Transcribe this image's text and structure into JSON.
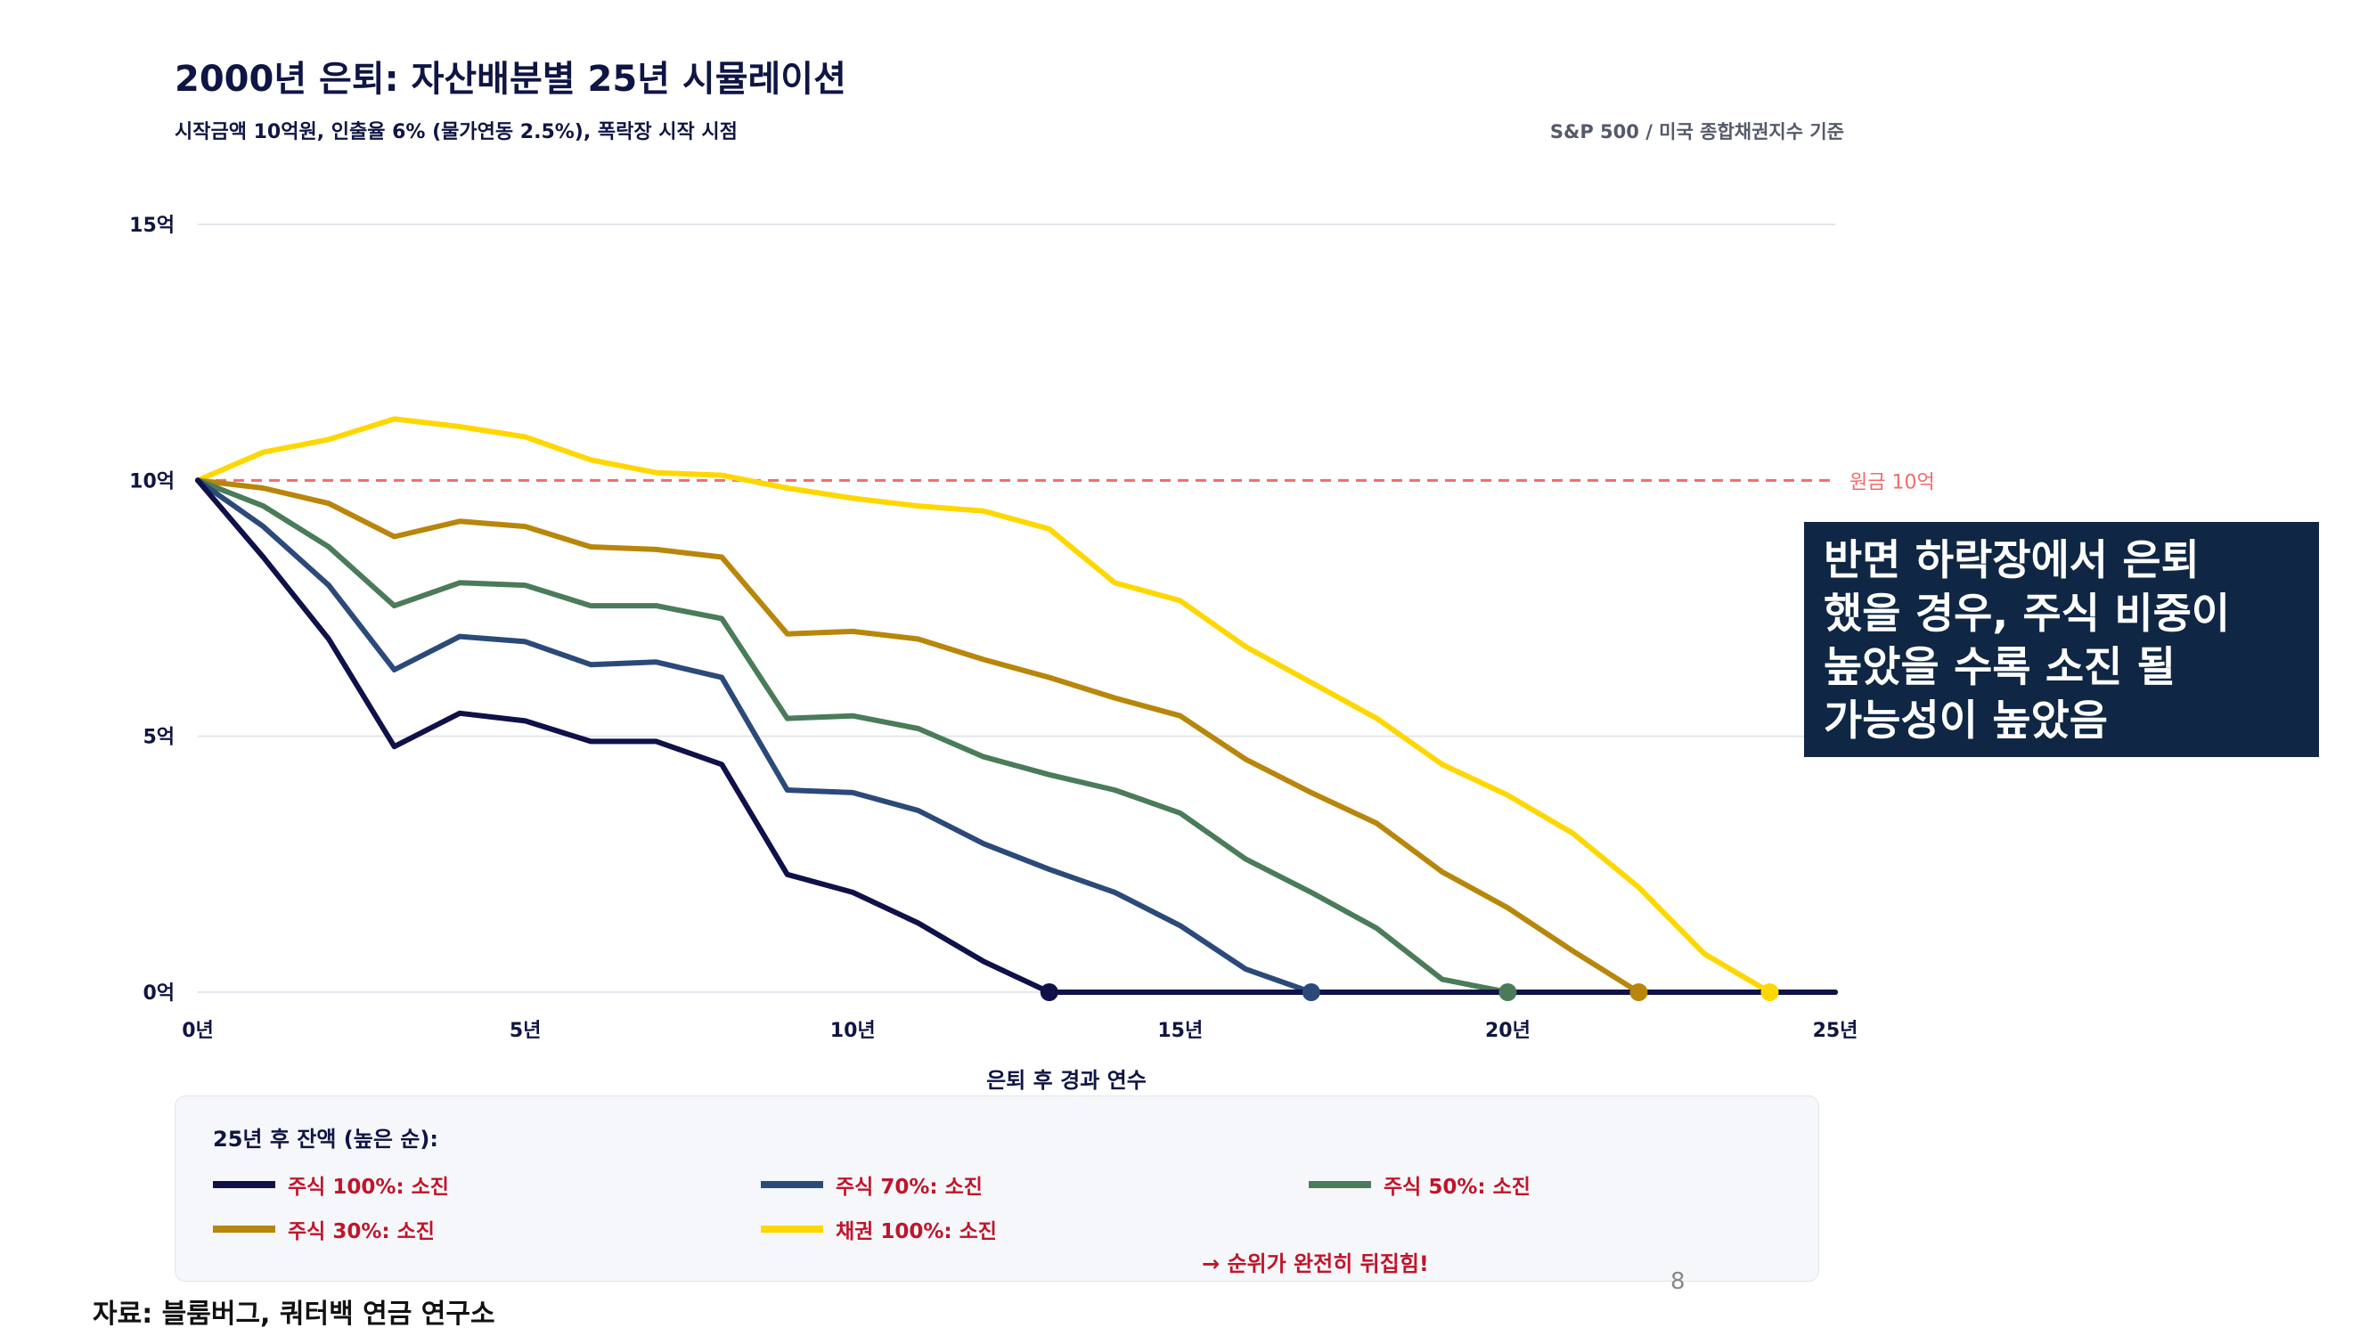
{
  "title": "2000년 은퇴: 자산배분별 25년 시뮬레이션",
  "subtitle": "시작금액 10억원, 인출율 6% (물가연동 2.5%), 폭락장 시작 시점",
  "source_note": "S&P 500 / 미국 종합채권지수 기준",
  "callout": {
    "lines": [
      "반면 하락장에서 은퇴",
      "했을 경우, 주식 비중이",
      "높았을 수록 소진 될",
      "가능성이 높았음"
    ]
  },
  "legend_box": {
    "heading": "25년 후 잔액 (높은 순):",
    "items": [
      {
        "label": "주식 100%: 소진",
        "color": "#0f1148"
      },
      {
        "label": "주식 70%: 소진",
        "color": "#2b4a7a"
      },
      {
        "label": "주식 50%: 소진",
        "color": "#4a7c59"
      },
      {
        "label": "주식 30%: 소진",
        "color": "#b8860b"
      },
      {
        "label": "채권 100%: 소진",
        "color": "#ffd700"
      }
    ],
    "note": "→ 순위가 완전히 뒤집힘!"
  },
  "page_number": "8",
  "footer_source": "자료: 블룸버그, 쿼터백 연금 연구소",
  "chart_data": {
    "type": "line",
    "xlabel": "은퇴 후 경과 연수",
    "ylabel": "",
    "xlim": [
      0,
      25
    ],
    "ylim": [
      0,
      15
    ],
    "x_ticks": [
      0,
      5,
      10,
      15,
      20,
      25
    ],
    "x_tick_labels": [
      "0년",
      "5년",
      "10년",
      "15년",
      "20년",
      "25년"
    ],
    "y_ticks": [
      0,
      5,
      10,
      15
    ],
    "y_tick_labels": [
      "0억",
      "5억",
      "10억",
      "15억"
    ],
    "grid": true,
    "reference_line": {
      "y": 10,
      "label": "원금 10억",
      "color": "#f26b6b"
    },
    "x": [
      0,
      1,
      2,
      3,
      4,
      5,
      6,
      7,
      8,
      9,
      10,
      11,
      12,
      13,
      14,
      15,
      16,
      17,
      18,
      19,
      20,
      21,
      22,
      23,
      24,
      25
    ],
    "series": [
      {
        "name": "주식 100%",
        "color": "#0f1148",
        "depleted_year": 13,
        "values": [
          10.0,
          8.5,
          6.9,
          4.8,
          5.45,
          5.3,
          4.9,
          4.9,
          4.45,
          2.3,
          1.95,
          1.35,
          0.6,
          0.0,
          0.0,
          0.0,
          0.0,
          0.0,
          0.0,
          0.0,
          0.0,
          0.0,
          0.0,
          0.0,
          0.0,
          0.0
        ]
      },
      {
        "name": "주식 70%",
        "color": "#2b4a7a",
        "depleted_year": 17,
        "values": [
          10.0,
          9.1,
          7.95,
          6.3,
          6.95,
          6.85,
          6.4,
          6.45,
          6.15,
          3.95,
          3.9,
          3.55,
          2.9,
          2.4,
          1.95,
          1.3,
          0.45,
          0.0,
          0.0,
          0.0,
          0.0,
          0.0,
          0.0,
          0.0,
          0.0,
          0.0
        ]
      },
      {
        "name": "주식 50%",
        "color": "#4a7c59",
        "depleted_year": 20,
        "values": [
          10.0,
          9.5,
          8.7,
          7.55,
          8.0,
          7.95,
          7.55,
          7.55,
          7.3,
          5.35,
          5.4,
          5.15,
          4.6,
          4.25,
          3.95,
          3.5,
          2.6,
          1.95,
          1.25,
          0.25,
          0.0,
          0.0,
          0.0,
          0.0,
          0.0,
          0.0
        ]
      },
      {
        "name": "주식 30%",
        "color": "#b8860b",
        "depleted_year": 22,
        "values": [
          10.0,
          9.85,
          9.55,
          8.9,
          9.2,
          9.1,
          8.7,
          8.65,
          8.5,
          7.0,
          7.05,
          6.9,
          6.5,
          6.15,
          5.75,
          5.4,
          4.55,
          3.9,
          3.3,
          2.35,
          1.65,
          0.8,
          0.0,
          0.0,
          0.0,
          0.0
        ]
      },
      {
        "name": "채권 100%",
        "color": "#ffd700",
        "depleted_year": 24,
        "values": [
          10.0,
          10.55,
          10.8,
          11.2,
          11.05,
          10.85,
          10.4,
          10.15,
          10.1,
          9.85,
          9.65,
          9.5,
          9.4,
          9.05,
          8.0,
          7.65,
          6.75,
          6.05,
          5.35,
          4.45,
          3.85,
          3.1,
          2.05,
          0.75,
          0.0,
          0.0
        ]
      }
    ]
  }
}
